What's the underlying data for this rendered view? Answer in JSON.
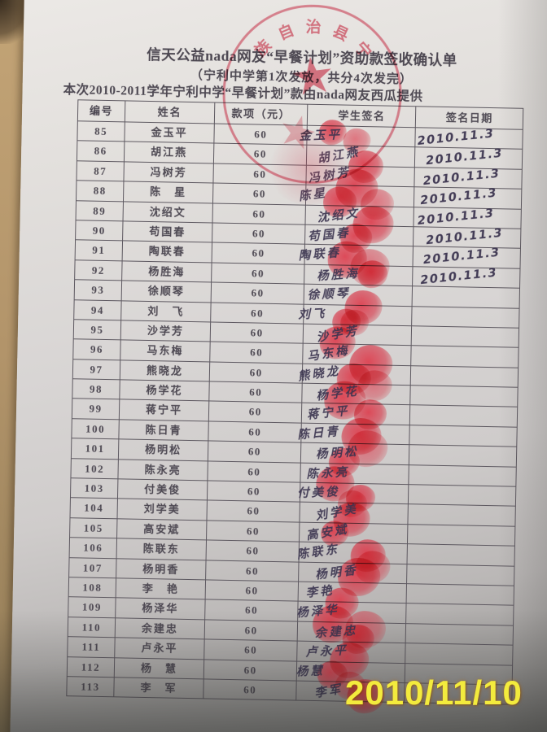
{
  "colors": {
    "desk-hi": "#c3a476",
    "desk-mid": "#b2946a",
    "desk-lo": "#8f7a55",
    "print-ink": "#4d4852",
    "ink": "#3a3350",
    "line": "#5d5860",
    "seal-red": "rgba(201,42,66,0.62)",
    "seal-red-border": "rgba(203,44,70,0.55)",
    "seal-red-ghost": "rgba(201,42,66,0.32)",
    "stamp-yellow": "#f3eb3d"
  },
  "photo": {
    "camera_timestamp": "2010/11/10"
  },
  "document": {
    "title": "信天公益nada网友“早餐计划”资助款签收确认单",
    "subtitle": "（宁利中学第1次发放，共分4次发完）",
    "provider_line": "本次2010-2011学年宁利中学“早餐计划”款由nada网友西瓜提供",
    "stamp": {
      "seal_arc_text": "族自治县宁",
      "star_glyph": "★"
    },
    "table": {
      "headers": [
        "编号",
        "姓名",
        "款项（元）",
        "学生签名",
        "签名日期"
      ],
      "rows": [
        {
          "no": "85",
          "name": "金玉平",
          "amount": "60",
          "signature": "金玉平",
          "date": "2010.11.3"
        },
        {
          "no": "86",
          "name": "胡江燕",
          "amount": "60",
          "signature": "胡江燕",
          "date": "2010.11.3"
        },
        {
          "no": "87",
          "name": "冯树芳",
          "amount": "60",
          "signature": "冯树芳",
          "date": "2010.11.3"
        },
        {
          "no": "88",
          "name": "陈　星",
          "amount": "60",
          "signature": "陈星",
          "date": "2010.11.3"
        },
        {
          "no": "89",
          "name": "沈绍文",
          "amount": "60",
          "signature": "沈绍文",
          "date": "2010.11.3"
        },
        {
          "no": "90",
          "name": "苟国春",
          "amount": "60",
          "signature": "苟国春",
          "date": "2010.11.3"
        },
        {
          "no": "91",
          "name": "陶联春",
          "amount": "60",
          "signature": "陶联春",
          "date": "2010.11.3"
        },
        {
          "no": "92",
          "name": "杨胜海",
          "amount": "60",
          "signature": "杨胜海",
          "date": "2010.11.3"
        },
        {
          "no": "93",
          "name": "徐顺琴",
          "amount": "60",
          "signature": "徐顺琴",
          "date": ""
        },
        {
          "no": "94",
          "name": "刘　飞",
          "amount": "60",
          "signature": "刘飞",
          "date": ""
        },
        {
          "no": "95",
          "name": "沙学芳",
          "amount": "60",
          "signature": "沙学芳",
          "date": ""
        },
        {
          "no": "96",
          "name": "马东梅",
          "amount": "60",
          "signature": "马东梅",
          "date": ""
        },
        {
          "no": "97",
          "name": "熊晓龙",
          "amount": "60",
          "signature": "熊晓龙",
          "date": ""
        },
        {
          "no": "98",
          "name": "杨学花",
          "amount": "60",
          "signature": "杨学花",
          "date": ""
        },
        {
          "no": "99",
          "name": "蒋宁平",
          "amount": "60",
          "signature": "蒋宁平",
          "date": ""
        },
        {
          "no": "100",
          "name": "陈日青",
          "amount": "60",
          "signature": "陈日青",
          "date": ""
        },
        {
          "no": "101",
          "name": "杨明松",
          "amount": "60",
          "signature": "杨明松",
          "date": ""
        },
        {
          "no": "102",
          "name": "陈永亮",
          "amount": "60",
          "signature": "陈永亮",
          "date": ""
        },
        {
          "no": "103",
          "name": "付美俊",
          "amount": "60",
          "signature": "付美俊",
          "date": ""
        },
        {
          "no": "104",
          "name": "刘学美",
          "amount": "60",
          "signature": "刘学美",
          "date": ""
        },
        {
          "no": "105",
          "name": "高安斌",
          "amount": "60",
          "signature": "高安斌",
          "date": ""
        },
        {
          "no": "106",
          "name": "陈联东",
          "amount": "60",
          "signature": "陈联东",
          "date": ""
        },
        {
          "no": "107",
          "name": "杨明香",
          "amount": "60",
          "signature": "杨明香",
          "date": ""
        },
        {
          "no": "108",
          "name": "李　艳",
          "amount": "60",
          "signature": "李艳",
          "date": ""
        },
        {
          "no": "109",
          "name": "杨泽华",
          "amount": "60",
          "signature": "杨泽华",
          "date": ""
        },
        {
          "no": "110",
          "name": "余建忠",
          "amount": "60",
          "signature": "余建忠",
          "date": ""
        },
        {
          "no": "111",
          "name": "卢永平",
          "amount": "60",
          "signature": "卢永平",
          "date": ""
        },
        {
          "no": "112",
          "name": "杨　慧",
          "amount": "60",
          "signature": "杨慧",
          "date": ""
        },
        {
          "no": "113",
          "name": "李　军",
          "amount": "60",
          "signature": "李军",
          "date": ""
        }
      ]
    }
  }
}
